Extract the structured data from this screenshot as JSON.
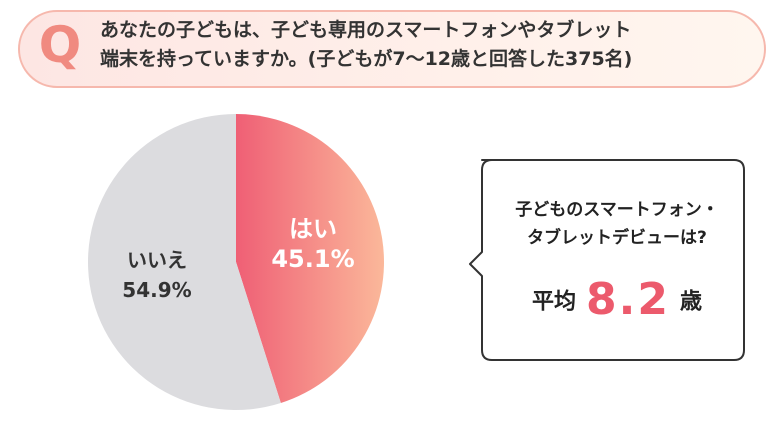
{
  "question": {
    "mark": "Q",
    "line1": "あなたの子どもは、子ども専用のスマートフォンやタブレット",
    "line2": "端末を持っていますか。(子どもが7〜12歳と回答した375名)"
  },
  "chart_data": {
    "type": "pie",
    "slices": [
      {
        "label": "はい",
        "value": 45.1,
        "value_text": "45.1%",
        "color": "#f0697b"
      },
      {
        "label": "いいえ",
        "value": 54.9,
        "value_text": "54.9%",
        "color": "#dcdcdf"
      }
    ]
  },
  "callout": {
    "title_line1": "子どものスマートフォン・",
    "title_line2": "タブレットデビューは?",
    "avg_label": "平均",
    "avg_value": "8.2",
    "avg_unit": "歳"
  },
  "colors": {
    "accent": "#ec5a6c",
    "yes_gradient_end": "#fbb89a",
    "no_slice": "#dcdcdf"
  }
}
